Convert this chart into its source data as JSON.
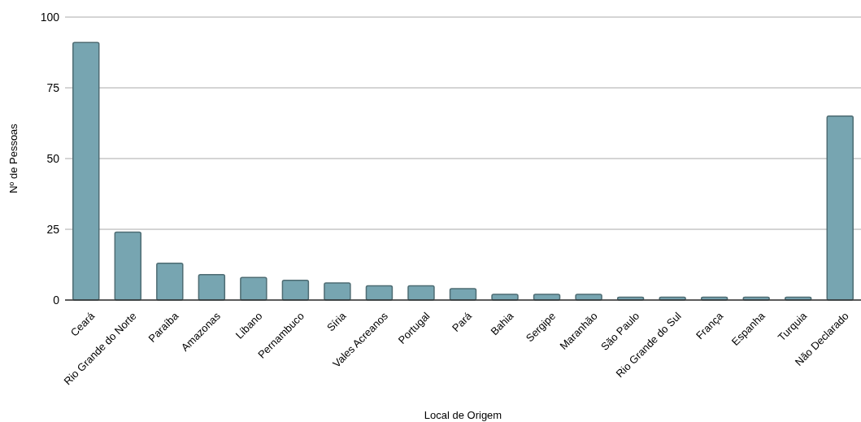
{
  "chart_data": {
    "type": "bar",
    "xlabel": "Local de Origem",
    "ylabel": "Nº de Pessoas",
    "categories": [
      "Ceará",
      "Rio Grande do Norte",
      "Paraíba",
      "Amazonas",
      "Líbano",
      "Pernambuco",
      "Síria",
      "Vales Acreanos",
      "Portugal",
      "Pará",
      "Bahia",
      "Sergipe",
      "Maranhão",
      "São Paulo",
      "Rio Grande do Sul",
      "França",
      "Espanha",
      "Turquia",
      "Não Declarado"
    ],
    "values": [
      91,
      24,
      13,
      9,
      8,
      7,
      6,
      5,
      5,
      4,
      2,
      2,
      2,
      1,
      1,
      1,
      1,
      1,
      65
    ],
    "color": "#77a5b1",
    "ylim": [
      0,
      100
    ],
    "yticks": [
      0,
      25,
      50,
      75,
      100
    ],
    "grid": "y"
  }
}
